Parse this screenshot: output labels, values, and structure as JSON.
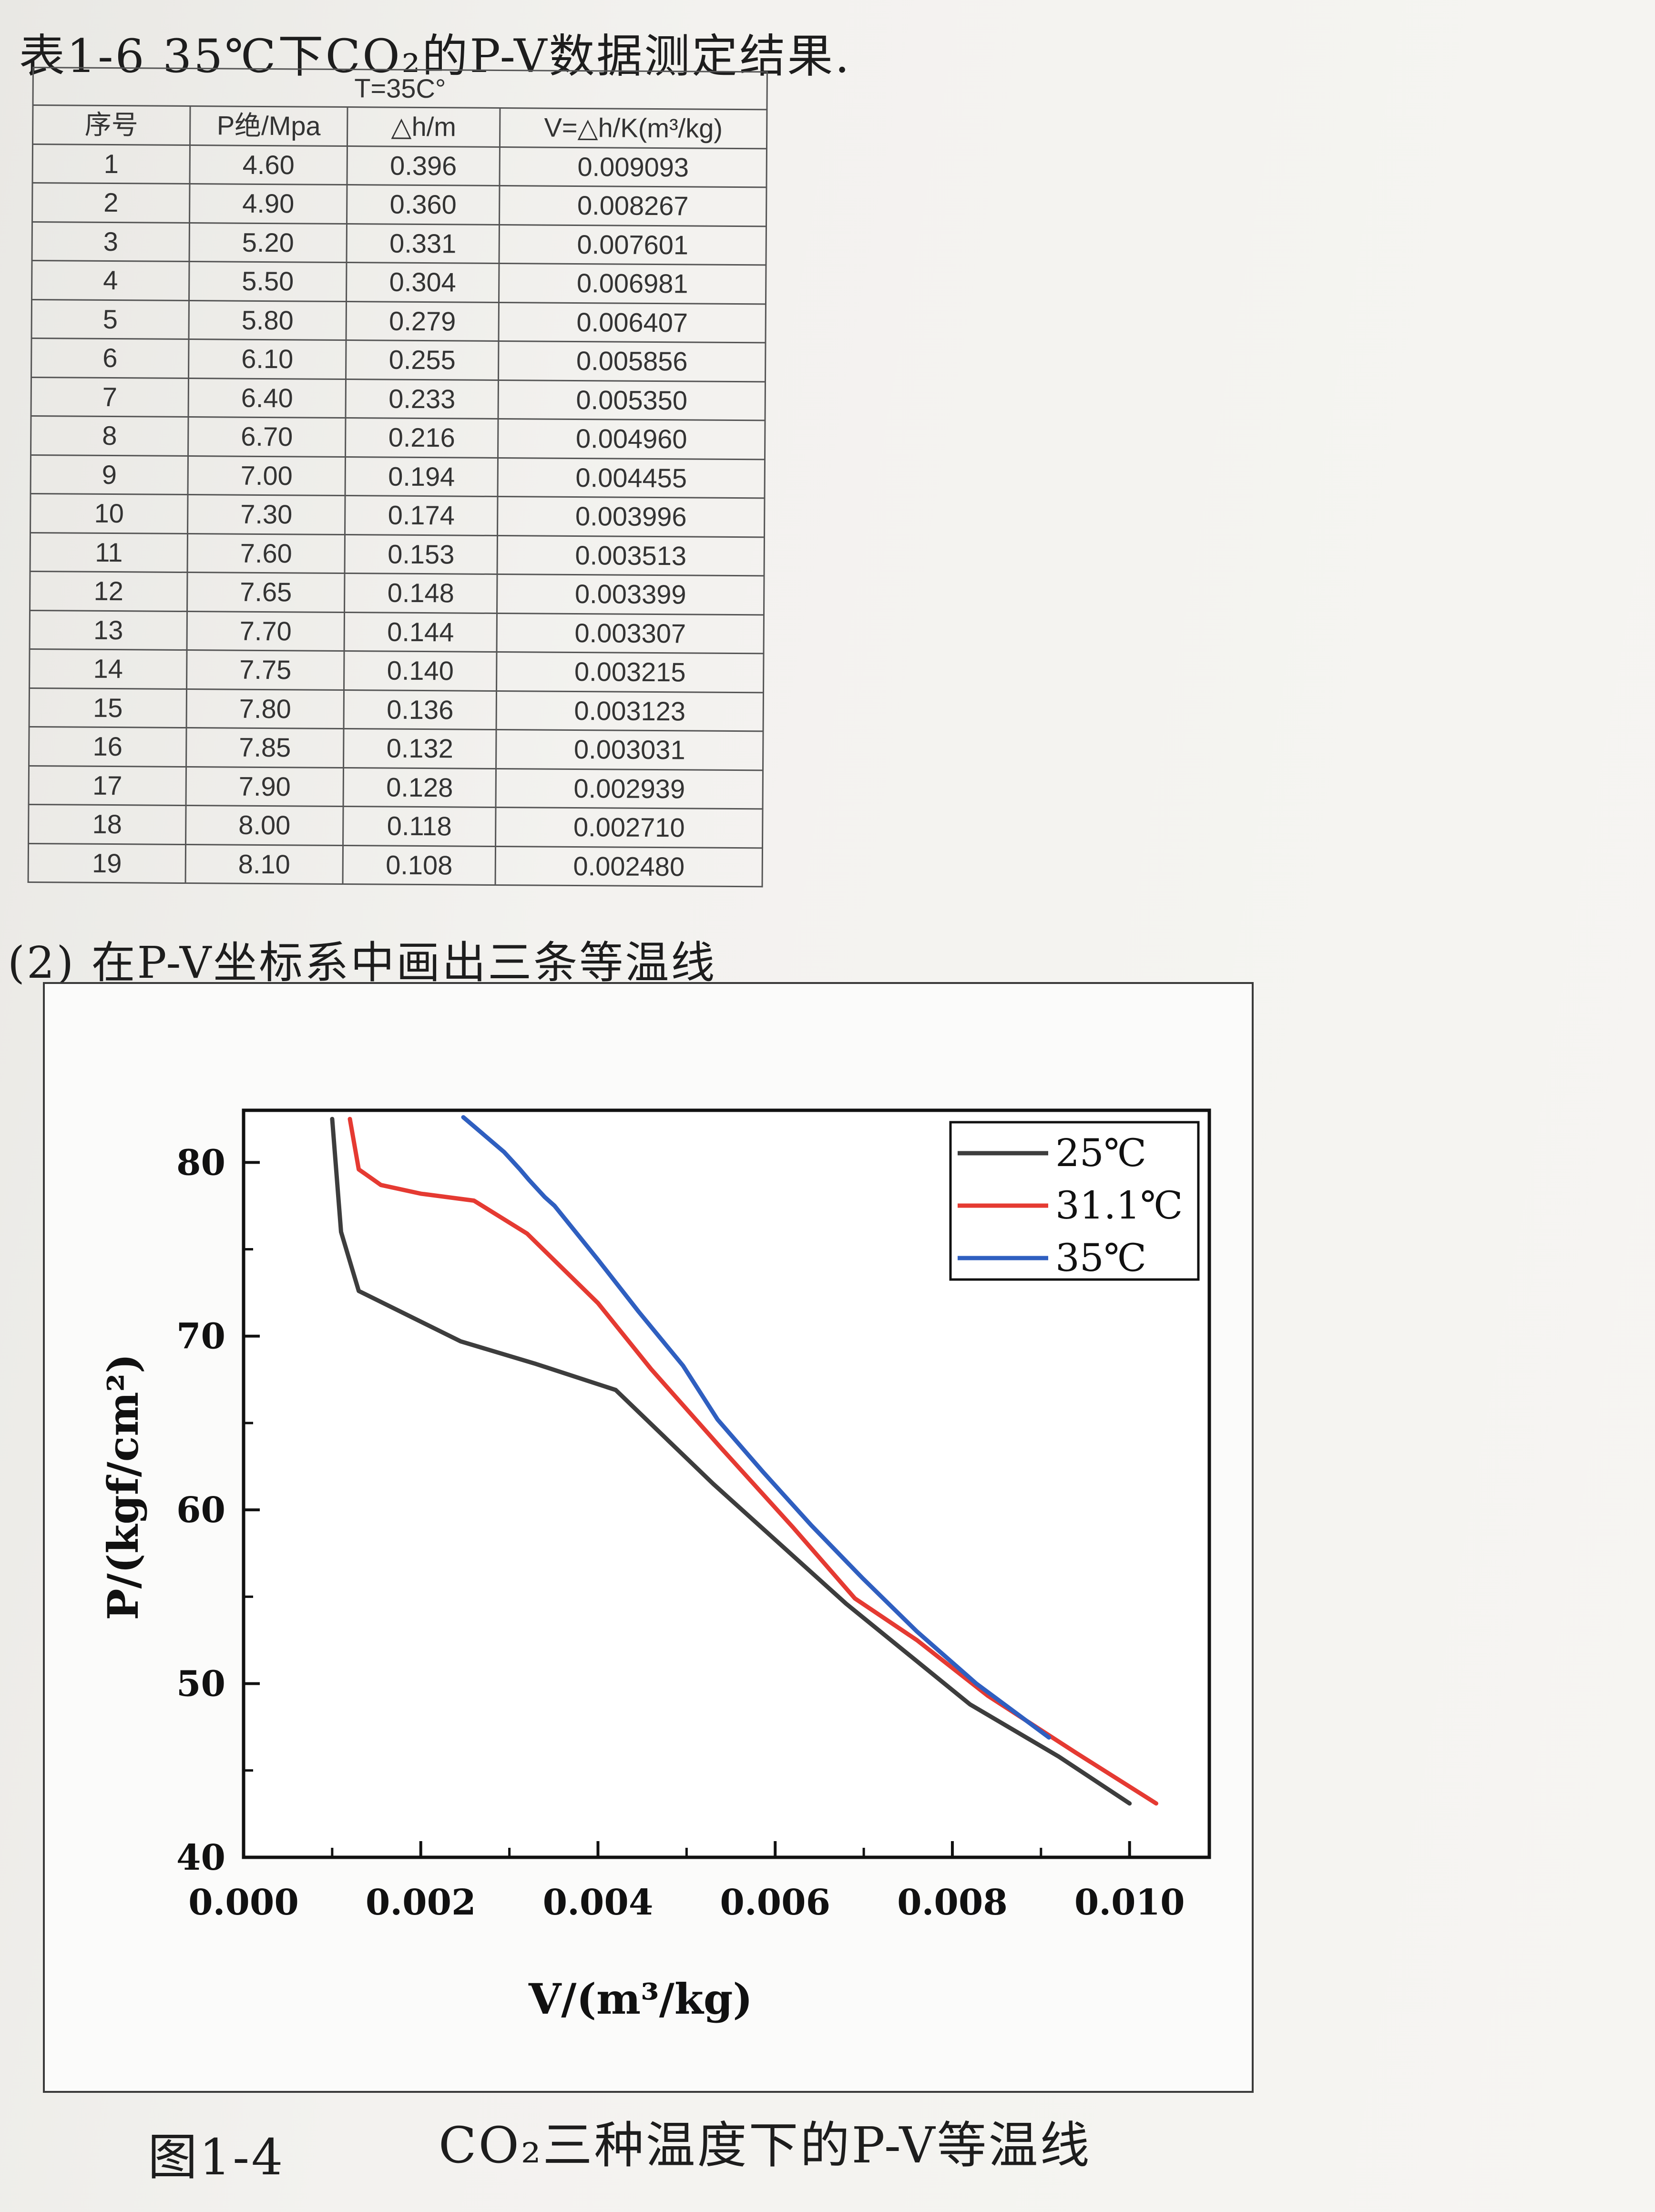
{
  "table_title": "表1-6  35℃下CO₂的P-V数据测定结果.",
  "table": {
    "group_header": "T=35C°",
    "columns": [
      "序号",
      "P绝/Mpa",
      "△h/m",
      "V=△h/K(m³/kg)"
    ],
    "rows": [
      [
        "1",
        "4.60",
        "0.396",
        "0.009093"
      ],
      [
        "2",
        "4.90",
        "0.360",
        "0.008267"
      ],
      [
        "3",
        "5.20",
        "0.331",
        "0.007601"
      ],
      [
        "4",
        "5.50",
        "0.304",
        "0.006981"
      ],
      [
        "5",
        "5.80",
        "0.279",
        "0.006407"
      ],
      [
        "6",
        "6.10",
        "0.255",
        "0.005856"
      ],
      [
        "7",
        "6.40",
        "0.233",
        "0.005350"
      ],
      [
        "8",
        "6.70",
        "0.216",
        "0.004960"
      ],
      [
        "9",
        "7.00",
        "0.194",
        "0.004455"
      ],
      [
        "10",
        "7.30",
        "0.174",
        "0.003996"
      ],
      [
        "11",
        "7.60",
        "0.153",
        "0.003513"
      ],
      [
        "12",
        "7.65",
        "0.148",
        "0.003399"
      ],
      [
        "13",
        "7.70",
        "0.144",
        "0.003307"
      ],
      [
        "14",
        "7.75",
        "0.140",
        "0.003215"
      ],
      [
        "15",
        "7.80",
        "0.136",
        "0.003123"
      ],
      [
        "16",
        "7.85",
        "0.132",
        "0.003031"
      ],
      [
        "17",
        "7.90",
        "0.128",
        "0.002939"
      ],
      [
        "18",
        "8.00",
        "0.118",
        "0.002710"
      ],
      [
        "19",
        "8.10",
        "0.108",
        "0.002480"
      ]
    ]
  },
  "section_caption": "(2) 在P-V坐标系中画出三条等温线",
  "figure_number": "图1-4",
  "figure_caption": "CO₂三种温度下的P-V等温线",
  "chart_data": {
    "type": "line",
    "xlabel": "V/(m³/kg)",
    "ylabel": "P/(kgf/cm²)",
    "xlim": [
      0.0,
      0.0109
    ],
    "ylim": [
      40,
      83
    ],
    "xticks": [
      "0.000",
      "0.002",
      "0.004",
      "0.006",
      "0.008",
      "0.010"
    ],
    "yticks": [
      "40",
      "50",
      "60",
      "70",
      "80"
    ],
    "legend_position": "top-right",
    "series": [
      {
        "name": "25℃",
        "color": "#3d3d3d",
        "x": [
          0.001,
          0.0011,
          0.0013,
          0.00245,
          0.0033,
          0.0042,
          0.0053,
          0.0068,
          0.0082,
          0.0092,
          0.01
        ],
        "y": [
          82.5,
          76.0,
          72.6,
          69.7,
          68.4,
          66.9,
          61.5,
          54.6,
          48.8,
          45.8,
          43.1
        ]
      },
      {
        "name": "31.1℃",
        "color": "#e53a32",
        "x": [
          0.0012,
          0.0013,
          0.00155,
          0.002,
          0.0026,
          0.0032,
          0.004,
          0.0046,
          0.0054,
          0.0062,
          0.0069,
          0.0076,
          0.0084,
          0.0094,
          0.0103
        ],
        "y": [
          82.5,
          79.6,
          78.7,
          78.2,
          77.8,
          75.9,
          71.9,
          68.1,
          63.5,
          59.0,
          54.9,
          52.5,
          49.3,
          46.0,
          43.1
        ]
      },
      {
        "name": "35℃",
        "color": "#2f5fc0",
        "x": [
          0.00248,
          0.00271,
          0.00294,
          0.00303,
          0.00312,
          0.00322,
          0.00331,
          0.0034,
          0.00351,
          0.004,
          0.00446,
          0.00496,
          0.00535,
          0.00586,
          0.00641,
          0.00698,
          0.0076,
          0.00827,
          0.00909
        ],
        "y": [
          82.6,
          81.6,
          80.6,
          80.1,
          79.6,
          79.0,
          78.5,
          78.0,
          77.5,
          74.4,
          71.4,
          68.3,
          65.2,
          62.2,
          59.1,
          56.1,
          53.0,
          50.0,
          46.9
        ]
      }
    ]
  }
}
